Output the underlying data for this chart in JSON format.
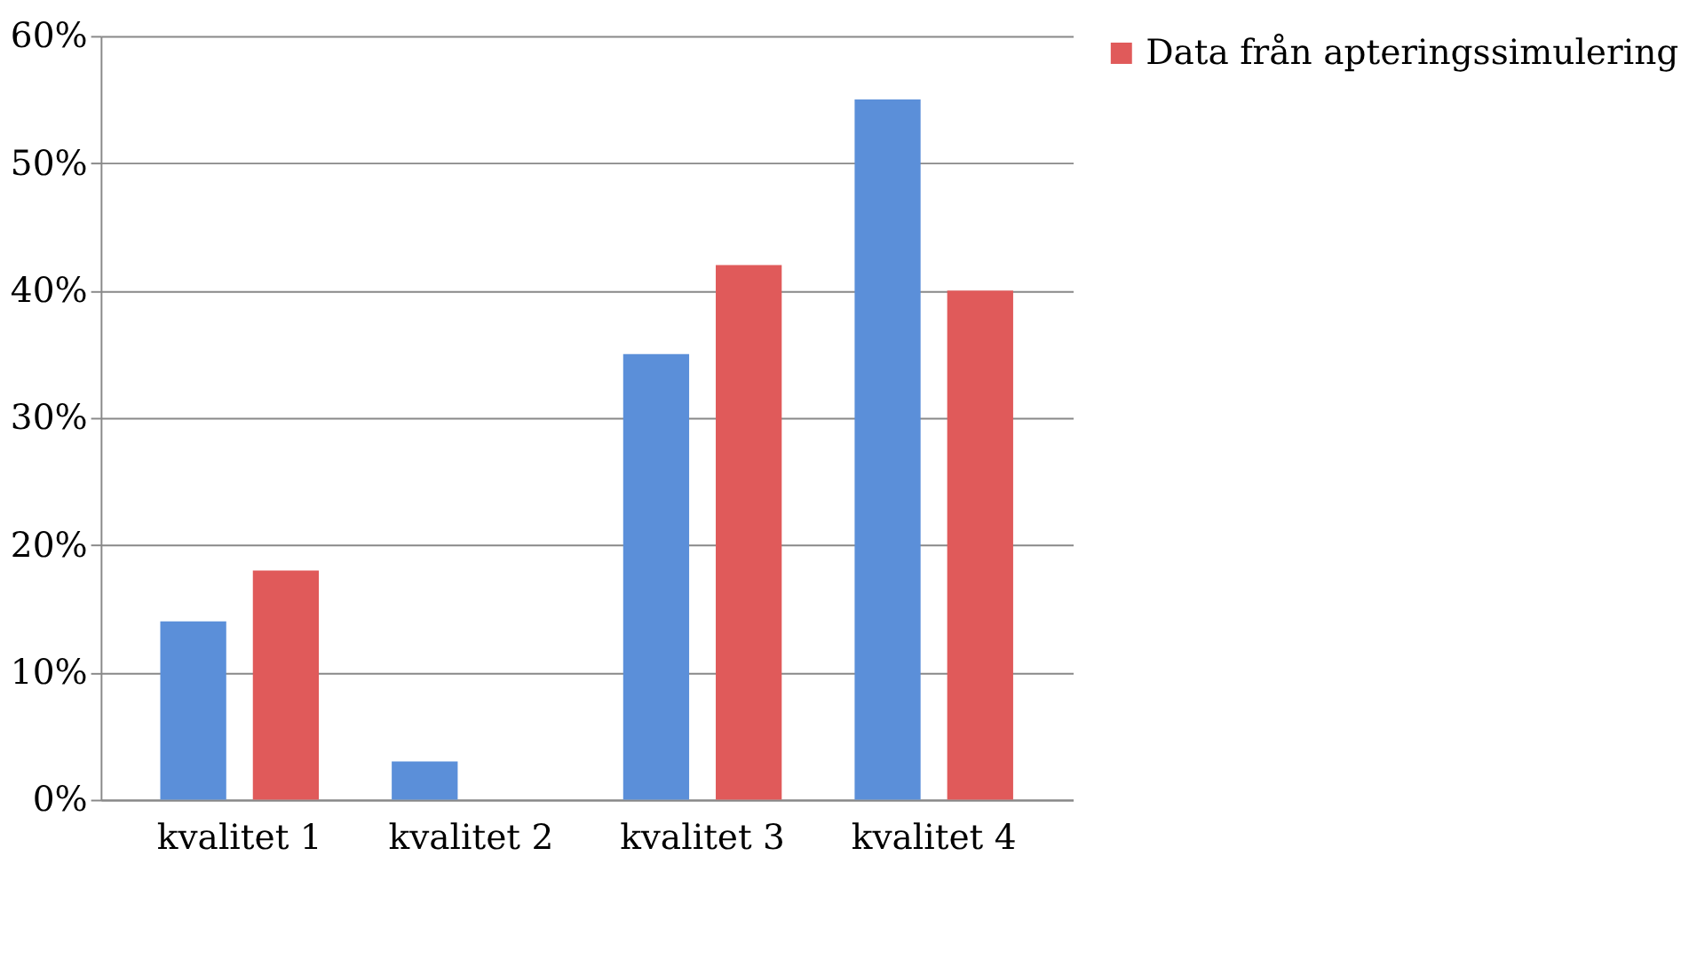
{
  "chart_data": {
    "type": "bar",
    "categories": [
      "kvalitet 1",
      "kvalitet 2",
      "kvalitet 3",
      "kvalitet 4"
    ],
    "series": [
      {
        "color": "#5b8fd9",
        "values": [
          14,
          3,
          35,
          55
        ]
      },
      {
        "name": "Data från apteringssimulering",
        "color": "#e05a5a",
        "values": [
          18,
          0,
          42,
          40
        ]
      }
    ],
    "ylim": [
      0,
      60
    ],
    "yticks": [
      {
        "value": 0,
        "label": "0%"
      },
      {
        "value": 10,
        "label": "10%"
      },
      {
        "value": 20,
        "label": "20%"
      },
      {
        "value": 30,
        "label": "30%"
      },
      {
        "value": 40,
        "label": "40%"
      },
      {
        "value": 50,
        "label": "50%"
      },
      {
        "value": 60,
        "label": "60%"
      }
    ],
    "grid": "y",
    "legend": "right"
  }
}
